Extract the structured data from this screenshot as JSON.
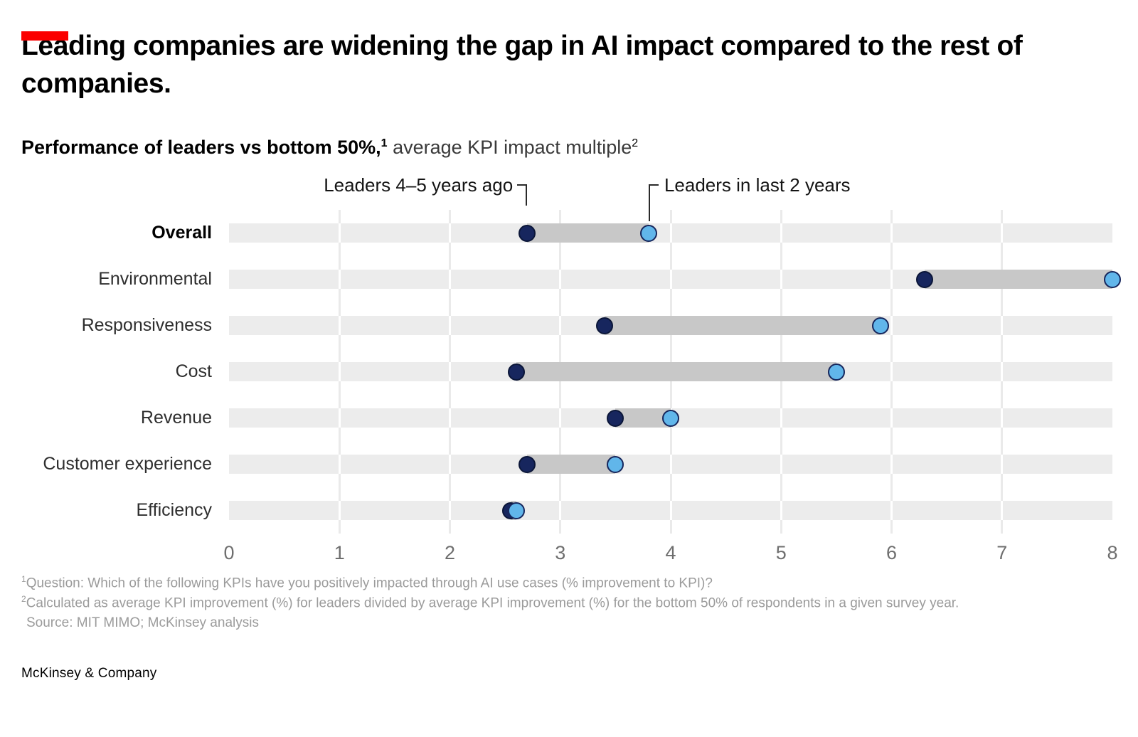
{
  "accent_color": "#fb0000",
  "title": "Leading companies are widening the gap in AI impact compared to the rest of companies.",
  "subtitle": {
    "bold": "Performance of leaders vs bottom 50%,",
    "sup1": "1",
    "regular": " average KPI impact multiple",
    "sup2": "2"
  },
  "chart_data": {
    "type": "dumbbell",
    "title": "Performance of leaders vs bottom 50%, average KPI impact multiple",
    "categories": [
      "Overall",
      "Environmental",
      "Responsiveness",
      "Cost",
      "Revenue",
      "Customer experience",
      "Efficiency"
    ],
    "emphasized_category": "Overall",
    "series": [
      {
        "name": "Leaders 4–5 years ago",
        "color": "#17265e",
        "border_color": "#0b1638",
        "values": [
          2.7,
          6.3,
          3.4,
          2.6,
          3.5,
          2.7,
          2.55
        ]
      },
      {
        "name": "Leaders in last 2 years",
        "color": "#61b6ea",
        "border_color": "#16265c",
        "values": [
          3.8,
          8.0,
          5.9,
          5.5,
          4.0,
          3.5,
          2.6
        ]
      }
    ],
    "xlim": [
      0,
      8
    ],
    "xticks": [
      0,
      1,
      2,
      3,
      4,
      5,
      6,
      7,
      8
    ],
    "band_color": "#ececec",
    "connector_color": "#c8c8c8",
    "grid": true,
    "legend_position": "annotations-above-first-row"
  },
  "annotations": {
    "target_category": "Overall",
    "left_series": 0,
    "right_series": 1
  },
  "footnotes": [
    {
      "sup": "1",
      "text": "Question: Which of the following KPIs have you positively impacted through AI use cases (% improvement to KPI)?"
    },
    {
      "sup": "2",
      "text": "Calculated as average KPI improvement (%) for leaders divided by average KPI improvement (%) for the bottom 50% of respondents in a given survey year."
    },
    {
      "sup": "",
      "text": "Source: MIT MIMO; McKinsey analysis"
    }
  ],
  "footer": "McKinsey & Company"
}
